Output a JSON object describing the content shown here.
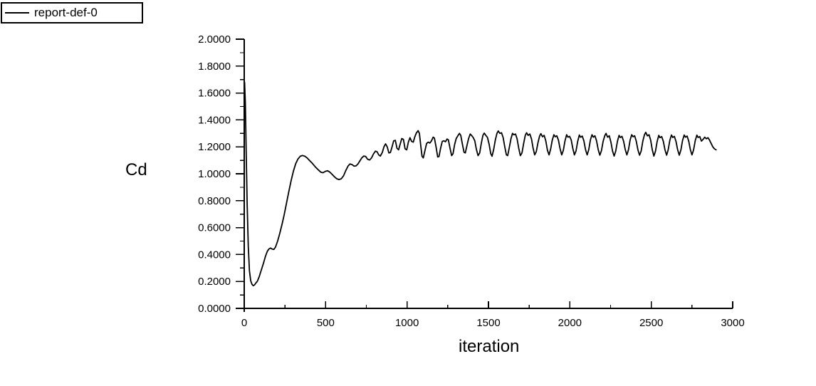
{
  "window": {
    "background": "#ffffff",
    "foreground": "#000000"
  },
  "legend": {
    "label": "report-def-0",
    "line_color": "#000000",
    "position": "top-left"
  },
  "chart_data": {
    "type": "line",
    "title": "",
    "xlabel": "iteration",
    "ylabel": "Cd",
    "xlim": [
      0,
      3000
    ],
    "ylim": [
      0.0,
      2.0
    ],
    "grid": false,
    "legend_position": "top-left",
    "x_major_ticks": [
      0,
      500,
      1000,
      1500,
      2000,
      2500,
      3000
    ],
    "x_tick_labels": [
      "0",
      "500",
      "1000",
      "1500",
      "2000",
      "2500",
      "3000"
    ],
    "x_minor_step": 250,
    "y_major_ticks": [
      0.0,
      0.2,
      0.4,
      0.6,
      0.8,
      1.0,
      1.2,
      1.4,
      1.6,
      1.8,
      2.0
    ],
    "y_tick_labels": [
      "0.0000",
      "0.2000",
      "0.4000",
      "0.6000",
      "0.8000",
      "1.0000",
      "1.2000",
      "1.4000",
      "1.6000",
      "1.8000",
      "2.0000"
    ],
    "y_minor_step": 0.1,
    "series": [
      {
        "name": "report-def-0",
        "color": "#000000",
        "points": [
          [
            2,
            1.68
          ],
          [
            7,
            1.52
          ],
          [
            12,
            1.18
          ],
          [
            18,
            0.78
          ],
          [
            25,
            0.46
          ],
          [
            32,
            0.28
          ],
          [
            40,
            0.205
          ],
          [
            48,
            0.178
          ],
          [
            56,
            0.168
          ],
          [
            64,
            0.175
          ],
          [
            72,
            0.19
          ],
          [
            80,
            0.2
          ],
          [
            92,
            0.235
          ],
          [
            105,
            0.285
          ],
          [
            118,
            0.335
          ],
          [
            130,
            0.385
          ],
          [
            142,
            0.425
          ],
          [
            152,
            0.442
          ],
          [
            162,
            0.448
          ],
          [
            172,
            0.44
          ],
          [
            182,
            0.438
          ],
          [
            192,
            0.455
          ],
          [
            205,
            0.5
          ],
          [
            218,
            0.555
          ],
          [
            232,
            0.625
          ],
          [
            246,
            0.7
          ],
          [
            260,
            0.785
          ],
          [
            274,
            0.87
          ],
          [
            288,
            0.95
          ],
          [
            302,
            1.02
          ],
          [
            316,
            1.075
          ],
          [
            330,
            1.11
          ],
          [
            344,
            1.13
          ],
          [
            358,
            1.136
          ],
          [
            372,
            1.13
          ],
          [
            386,
            1.118
          ],
          [
            400,
            1.1
          ],
          [
            418,
            1.078
          ],
          [
            436,
            1.052
          ],
          [
            454,
            1.03
          ],
          [
            470,
            1.012
          ],
          [
            484,
            1.008
          ],
          [
            498,
            1.018
          ],
          [
            512,
            1.022
          ],
          [
            526,
            1.012
          ],
          [
            540,
            0.995
          ],
          [
            554,
            0.978
          ],
          [
            568,
            0.963
          ],
          [
            582,
            0.957
          ],
          [
            596,
            0.963
          ],
          [
            610,
            0.985
          ],
          [
            624,
            1.025
          ],
          [
            638,
            1.058
          ],
          [
            650,
            1.073
          ],
          [
            662,
            1.068
          ],
          [
            674,
            1.057
          ],
          [
            686,
            1.058
          ],
          [
            698,
            1.072
          ],
          [
            710,
            1.095
          ],
          [
            722,
            1.118
          ],
          [
            734,
            1.132
          ],
          [
            746,
            1.128
          ],
          [
            758,
            1.108
          ],
          [
            770,
            1.102
          ],
          [
            782,
            1.118
          ],
          [
            794,
            1.148
          ],
          [
            806,
            1.168
          ],
          [
            816,
            1.163
          ],
          [
            826,
            1.14
          ],
          [
            836,
            1.132
          ],
          [
            848,
            1.158
          ],
          [
            858,
            1.2
          ],
          [
            868,
            1.222
          ],
          [
            878,
            1.2
          ],
          [
            888,
            1.155
          ],
          [
            898,
            1.158
          ],
          [
            908,
            1.2
          ],
          [
            918,
            1.245
          ],
          [
            928,
            1.248
          ],
          [
            938,
            1.19
          ],
          [
            948,
            1.178
          ],
          [
            958,
            1.222
          ],
          [
            968,
            1.262
          ],
          [
            978,
            1.255
          ],
          [
            988,
            1.185
          ],
          [
            998,
            1.178
          ],
          [
            1008,
            1.235
          ],
          [
            1018,
            1.268
          ],
          [
            1028,
            1.24
          ],
          [
            1038,
            1.235
          ],
          [
            1048,
            1.275
          ],
          [
            1058,
            1.305
          ],
          [
            1068,
            1.32
          ],
          [
            1076,
            1.3
          ],
          [
            1084,
            1.21
          ],
          [
            1092,
            1.13
          ],
          [
            1100,
            1.118
          ],
          [
            1110,
            1.172
          ],
          [
            1120,
            1.225
          ],
          [
            1130,
            1.235
          ],
          [
            1140,
            1.228
          ],
          [
            1150,
            1.245
          ],
          [
            1160,
            1.272
          ],
          [
            1168,
            1.265
          ],
          [
            1178,
            1.2
          ],
          [
            1188,
            1.125
          ],
          [
            1196,
            1.128
          ],
          [
            1206,
            1.19
          ],
          [
            1216,
            1.24
          ],
          [
            1226,
            1.245
          ],
          [
            1236,
            1.238
          ],
          [
            1246,
            1.258
          ],
          [
            1254,
            1.252
          ],
          [
            1264,
            1.19
          ],
          [
            1274,
            1.135
          ],
          [
            1282,
            1.148
          ],
          [
            1292,
            1.215
          ],
          [
            1302,
            1.262
          ],
          [
            1312,
            1.282
          ],
          [
            1322,
            1.3
          ],
          [
            1330,
            1.285
          ],
          [
            1340,
            1.22
          ],
          [
            1350,
            1.16
          ],
          [
            1358,
            1.155
          ],
          [
            1368,
            1.21
          ],
          [
            1378,
            1.262
          ],
          [
            1388,
            1.295
          ],
          [
            1396,
            1.285
          ],
          [
            1406,
            1.27
          ],
          [
            1416,
            1.245
          ],
          [
            1426,
            1.18
          ],
          [
            1436,
            1.135
          ],
          [
            1446,
            1.155
          ],
          [
            1456,
            1.225
          ],
          [
            1466,
            1.285
          ],
          [
            1474,
            1.302
          ],
          [
            1484,
            1.285
          ],
          [
            1494,
            1.27
          ],
          [
            1504,
            1.22
          ],
          [
            1514,
            1.15
          ],
          [
            1522,
            1.13
          ],
          [
            1532,
            1.18
          ],
          [
            1542,
            1.25
          ],
          [
            1552,
            1.3
          ],
          [
            1560,
            1.318
          ],
          [
            1570,
            1.3
          ],
          [
            1580,
            1.305
          ],
          [
            1590,
            1.27
          ],
          [
            1600,
            1.2
          ],
          [
            1610,
            1.14
          ],
          [
            1618,
            1.135
          ],
          [
            1628,
            1.195
          ],
          [
            1638,
            1.26
          ],
          [
            1648,
            1.3
          ],
          [
            1656,
            1.29
          ],
          [
            1666,
            1.295
          ],
          [
            1676,
            1.26
          ],
          [
            1686,
            1.19
          ],
          [
            1696,
            1.135
          ],
          [
            1706,
            1.155
          ],
          [
            1716,
            1.225
          ],
          [
            1726,
            1.285
          ],
          [
            1734,
            1.305
          ],
          [
            1744,
            1.285
          ],
          [
            1754,
            1.295
          ],
          [
            1764,
            1.26
          ],
          [
            1774,
            1.19
          ],
          [
            1784,
            1.14
          ],
          [
            1794,
            1.165
          ],
          [
            1804,
            1.23
          ],
          [
            1814,
            1.28
          ],
          [
            1822,
            1.298
          ],
          [
            1832,
            1.275
          ],
          [
            1842,
            1.285
          ],
          [
            1852,
            1.245
          ],
          [
            1862,
            1.175
          ],
          [
            1872,
            1.14
          ],
          [
            1882,
            1.185
          ],
          [
            1892,
            1.25
          ],
          [
            1902,
            1.29
          ],
          [
            1910,
            1.275
          ],
          [
            1920,
            1.282
          ],
          [
            1930,
            1.25
          ],
          [
            1940,
            1.185
          ],
          [
            1950,
            1.14
          ],
          [
            1960,
            1.175
          ],
          [
            1970,
            1.245
          ],
          [
            1980,
            1.29
          ],
          [
            1988,
            1.272
          ],
          [
            1998,
            1.278
          ],
          [
            2008,
            1.252
          ],
          [
            2018,
            1.19
          ],
          [
            2028,
            1.14
          ],
          [
            2038,
            1.17
          ],
          [
            2048,
            1.24
          ],
          [
            2058,
            1.288
          ],
          [
            2066,
            1.272
          ],
          [
            2076,
            1.28
          ],
          [
            2086,
            1.245
          ],
          [
            2096,
            1.18
          ],
          [
            2106,
            1.14
          ],
          [
            2116,
            1.18
          ],
          [
            2126,
            1.25
          ],
          [
            2136,
            1.29
          ],
          [
            2144,
            1.272
          ],
          [
            2154,
            1.282
          ],
          [
            2164,
            1.245
          ],
          [
            2174,
            1.18
          ],
          [
            2184,
            1.138
          ],
          [
            2194,
            1.172
          ],
          [
            2204,
            1.24
          ],
          [
            2214,
            1.282
          ],
          [
            2222,
            1.3
          ],
          [
            2232,
            1.272
          ],
          [
            2242,
            1.282
          ],
          [
            2252,
            1.235
          ],
          [
            2262,
            1.17
          ],
          [
            2272,
            1.132
          ],
          [
            2282,
            1.17
          ],
          [
            2292,
            1.24
          ],
          [
            2302,
            1.285
          ],
          [
            2310,
            1.27
          ],
          [
            2320,
            1.278
          ],
          [
            2330,
            1.242
          ],
          [
            2340,
            1.18
          ],
          [
            2350,
            1.14
          ],
          [
            2360,
            1.18
          ],
          [
            2370,
            1.25
          ],
          [
            2380,
            1.29
          ],
          [
            2388,
            1.275
          ],
          [
            2398,
            1.282
          ],
          [
            2408,
            1.242
          ],
          [
            2418,
            1.178
          ],
          [
            2428,
            1.138
          ],
          [
            2438,
            1.17
          ],
          [
            2448,
            1.243
          ],
          [
            2458,
            1.29
          ],
          [
            2466,
            1.308
          ],
          [
            2476,
            1.282
          ],
          [
            2486,
            1.29
          ],
          [
            2496,
            1.25
          ],
          [
            2506,
            1.18
          ],
          [
            2516,
            1.132
          ],
          [
            2526,
            1.168
          ],
          [
            2536,
            1.24
          ],
          [
            2546,
            1.285
          ],
          [
            2554,
            1.268
          ],
          [
            2564,
            1.276
          ],
          [
            2574,
            1.24
          ],
          [
            2584,
            1.178
          ],
          [
            2594,
            1.138
          ],
          [
            2604,
            1.178
          ],
          [
            2614,
            1.248
          ],
          [
            2624,
            1.288
          ],
          [
            2632,
            1.27
          ],
          [
            2642,
            1.278
          ],
          [
            2652,
            1.24
          ],
          [
            2662,
            1.178
          ],
          [
            2672,
            1.138
          ],
          [
            2682,
            1.178
          ],
          [
            2692,
            1.248
          ],
          [
            2702,
            1.288
          ],
          [
            2710,
            1.272
          ],
          [
            2720,
            1.28
          ],
          [
            2730,
            1.242
          ],
          [
            2740,
            1.18
          ],
          [
            2750,
            1.14
          ],
          [
            2760,
            1.178
          ],
          [
            2770,
            1.246
          ],
          [
            2780,
            1.287
          ],
          [
            2788,
            1.27
          ],
          [
            2798,
            1.276
          ],
          [
            2808,
            1.243
          ],
          [
            2818,
            1.255
          ],
          [
            2828,
            1.272
          ],
          [
            2838,
            1.26
          ],
          [
            2848,
            1.268
          ],
          [
            2858,
            1.25
          ],
          [
            2868,
            1.225
          ],
          [
            2878,
            1.2
          ],
          [
            2888,
            1.185
          ],
          [
            2898,
            1.178
          ]
        ]
      }
    ]
  }
}
